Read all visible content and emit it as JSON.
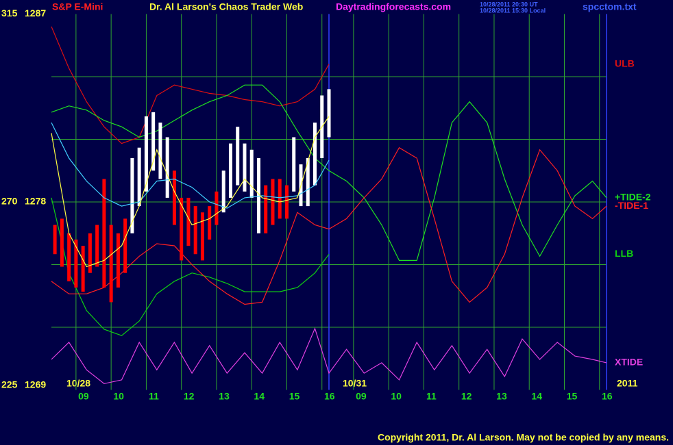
{
  "chart_data": {
    "type": "line",
    "title": "S&P E-Mini",
    "subtitle": "Dr. Al Larson's Chaos Trader Web",
    "source": "Daytradingforecasts.com",
    "timestamps": [
      "10/28/2011 20:30 UT",
      "10/28/2011 15:30 Local"
    ],
    "file": "spcctom.txt",
    "dates": [
      "10/28",
      "10/31",
      "2011"
    ],
    "copyright": "Copyright 2011, Dr. Al Larson. May not be copied by any means.",
    "xlim": [
      8.3,
      24.1
    ],
    "xticks": [
      {
        "value": 9,
        "label": "09"
      },
      10,
      11,
      12,
      13,
      14,
      15,
      16,
      {
        "value": 16.9,
        "label": "09"
      },
      {
        "value": 17.9,
        "label": "10"
      },
      {
        "value": 18.9,
        "label": "11"
      },
      {
        "value": 19.9,
        "label": "12"
      },
      {
        "value": 20.9,
        "label": "13"
      },
      {
        "value": 21.9,
        "label": "14"
      },
      {
        "value": 22.9,
        "label": "15"
      },
      {
        "value": 23.9,
        "label": "16"
      }
    ],
    "ylim": [
      1269,
      1287
    ],
    "yticks": [
      1269,
      1278,
      1287
    ],
    "y2lim": [
      225,
      315
    ],
    "y2ticks": [
      225,
      270,
      315
    ],
    "ygrid": [
      1272,
      1275,
      1278,
      1281,
      1284
    ],
    "grid": true,
    "grid_color": "#2fa52f",
    "bars": {
      "x": [
        8.4,
        8.6,
        8.8,
        9.0,
        9.2,
        9.4,
        9.6,
        9.8,
        10.0,
        10.2,
        10.4,
        10.6,
        10.8,
        11.0,
        11.2,
        11.4,
        11.6,
        11.8,
        12.0,
        12.2,
        12.4,
        12.6,
        12.8,
        13.0,
        13.2,
        13.4,
        13.6,
        13.8,
        14.0,
        14.2,
        14.4,
        14.6,
        14.8,
        15.0,
        15.2,
        15.4,
        15.6,
        15.8,
        16.0,
        16.2
      ],
      "high": [
        1276.9,
        1277.2,
        1276.5,
        1276.2,
        1275.9,
        1276.5,
        1276.9,
        1279.1,
        1276.9,
        1276.5,
        1277.2,
        1280.1,
        1280.6,
        1282.1,
        1282.3,
        1281.8,
        1281.1,
        1279.5,
        1278.2,
        1278.2,
        1277.8,
        1277.5,
        1277.8,
        1278.5,
        1279.5,
        1280.8,
        1281.6,
        1280.8,
        1280.5,
        1280.1,
        1278.8,
        1279.1,
        1279.1,
        1278.8,
        1281.1,
        1279.8,
        1280.1,
        1281.8,
        1283.1,
        1283.4
      ],
      "low": [
        1275.5,
        1274.9,
        1274.2,
        1273.9,
        1273.7,
        1274.6,
        1274.9,
        1273.9,
        1273.2,
        1273.9,
        1274.6,
        1276.5,
        1277.8,
        1278.5,
        1279.5,
        1279.1,
        1278.2,
        1276.9,
        1275.2,
        1275.9,
        1275.5,
        1275.2,
        1276.2,
        1276.9,
        1277.5,
        1278.2,
        1278.8,
        1278.5,
        1278.2,
        1276.5,
        1276.5,
        1276.9,
        1277.2,
        1277.2,
        1278.5,
        1277.8,
        1277.8,
        1278.8,
        1280.1,
        1281.1
      ],
      "colors": [
        "#ff0000",
        "#ff0000",
        "#ff0000",
        "#ff0000",
        "#ff0000",
        "#ff0000",
        "#ff0000",
        "#ff0000",
        "#ff0000",
        "#ff0000",
        "#ff0000",
        "#ffffff",
        "#ffffff",
        "#ffffff",
        "#ffffff",
        "#ffffff",
        "#ffffff",
        "#ff0000",
        "#ff0000",
        "#ff0000",
        "#ff0000",
        "#ff0000",
        "#ff0000",
        "#ff0000",
        "#ffffff",
        "#ffffff",
        "#ffffff",
        "#ffffff",
        "#ffffff",
        "#ffffff",
        "#ff0000",
        "#ff0000",
        "#ff0000",
        "#ff0000",
        "#ffffff",
        "#ffffff",
        "#ffffff",
        "#ffffff",
        "#ffffff",
        "#ffffff"
      ]
    },
    "series": [
      {
        "name": "ULB",
        "color": "#e01010",
        "x": [
          8.3,
          8.8,
          9.3,
          9.8,
          10.3,
          10.8,
          11.3,
          11.8,
          12.3,
          12.8,
          13.3,
          13.8,
          14.3,
          14.8,
          15.3,
          15.8,
          16.2
        ],
        "values": [
          1286.4,
          1284.4,
          1282.8,
          1281.6,
          1280.8,
          1281.1,
          1283.1,
          1283.6,
          1283.4,
          1283.2,
          1283.1,
          1282.9,
          1282.8,
          1282.6,
          1282.8,
          1283.4,
          1284.6
        ]
      },
      {
        "name": "LLB",
        "color": "#10d010",
        "x": [
          8.3,
          8.8,
          9.3,
          9.8,
          10.3,
          10.8,
          11.3,
          11.8,
          12.3,
          12.8,
          13.3,
          13.8,
          14.3,
          14.8,
          15.3,
          15.8,
          16.2
        ],
        "values": [
          1278.2,
          1274.6,
          1272.8,
          1271.9,
          1271.6,
          1272.3,
          1273.6,
          1274.2,
          1274.6,
          1274.4,
          1274.1,
          1273.7,
          1273.7,
          1273.7,
          1273.9,
          1274.6,
          1275.5
        ]
      },
      {
        "name": "+TIDE-2",
        "color": "#20e020",
        "x": [
          8.3,
          8.8,
          9.3,
          9.8,
          10.3,
          10.8,
          11.3,
          11.8,
          12.3,
          12.8,
          13.3,
          13.8,
          14.3,
          14.8,
          15.3,
          15.8,
          16.2,
          16.7,
          17.2,
          17.7,
          18.2,
          18.7,
          19.2,
          19.7,
          20.2,
          20.7,
          21.2,
          21.7,
          22.2,
          22.7,
          23.2,
          23.7,
          24.1
        ],
        "values": [
          1282.3,
          1282.6,
          1282.4,
          1281.9,
          1281.6,
          1281.1,
          1281.4,
          1281.9,
          1282.4,
          1282.8,
          1283.1,
          1283.6,
          1283.6,
          1282.8,
          1281.4,
          1280.1,
          1279.5,
          1279.0,
          1278.2,
          1276.9,
          1275.2,
          1275.2,
          1278.2,
          1281.8,
          1282.8,
          1281.8,
          1279.1,
          1276.9,
          1275.4,
          1276.9,
          1278.3,
          1279.0,
          1278.2
        ]
      },
      {
        "name": "-TIDE-1",
        "color": "#ff2020",
        "x": [
          8.3,
          8.8,
          9.3,
          9.8,
          10.3,
          10.8,
          11.3,
          11.8,
          12.3,
          12.8,
          13.3,
          13.8,
          14.3,
          14.8,
          15.3,
          15.8,
          16.2,
          16.7,
          17.2,
          17.7,
          18.2,
          18.7,
          19.2,
          19.7,
          20.2,
          20.7,
          21.2,
          21.7,
          22.2,
          22.7,
          23.2,
          23.7,
          24.1
        ],
        "values": [
          1274.2,
          1273.6,
          1273.6,
          1273.9,
          1274.6,
          1275.4,
          1276.0,
          1275.9,
          1275.0,
          1274.2,
          1273.6,
          1273.1,
          1273.2,
          1275.2,
          1277.5,
          1276.9,
          1276.7,
          1277.2,
          1278.2,
          1279.1,
          1280.6,
          1280.1,
          1277.2,
          1274.2,
          1273.2,
          1273.9,
          1275.5,
          1278.2,
          1280.5,
          1279.5,
          1277.8,
          1277.2,
          1277.8
        ]
      },
      {
        "color": "#40d0ff",
        "x": [
          8.3,
          8.8,
          9.3,
          9.8,
          10.3,
          10.8,
          11.3,
          11.8,
          12.3,
          12.8,
          13.3,
          13.8,
          14.3,
          14.8,
          15.3,
          15.8,
          16.2
        ],
        "values": [
          1281.8,
          1280.1,
          1279.0,
          1278.2,
          1277.8,
          1278.0,
          1279.0,
          1279.1,
          1278.7,
          1278.0,
          1277.7,
          1278.2,
          1278.3,
          1278.2,
          1278.3,
          1278.8,
          1280.0
        ]
      },
      {
        "color": "#ffff40",
        "x": [
          8.3,
          8.8,
          9.3,
          9.8,
          10.3,
          10.8,
          11.3,
          11.8,
          12.3,
          12.8,
          13.3,
          13.8,
          14.3,
          14.8,
          15.3,
          15.8,
          16.2
        ],
        "values": [
          1281.3,
          1276.5,
          1274.9,
          1275.2,
          1275.9,
          1277.8,
          1280.5,
          1278.5,
          1276.9,
          1277.2,
          1277.8,
          1279.1,
          1278.2,
          1278.0,
          1278.2,
          1281.1,
          1282.1
        ]
      },
      {
        "name": "XTIDE",
        "color": "#e040e0",
        "axis": "y2",
        "x": [
          8.3,
          8.8,
          9.3,
          9.8,
          10.3,
          10.8,
          11.3,
          11.8,
          12.3,
          12.8,
          13.3,
          13.8,
          14.3,
          14.8,
          15.3,
          15.8,
          16.2,
          16.7,
          17.2,
          17.7,
          18.2,
          18.7,
          19.2,
          19.7,
          20.2,
          20.7,
          21.2,
          21.7,
          22.2,
          22.7,
          23.2,
          23.7,
          24.1
        ],
        "values": [
          232.3,
          236.4,
          229.8,
          226.5,
          227.4,
          236.4,
          229.8,
          236.4,
          229.0,
          235.6,
          229.0,
          233.9,
          229.0,
          236.4,
          229.8,
          239.7,
          229.0,
          234.7,
          229.0,
          231.5,
          227.4,
          236.4,
          229.8,
          235.6,
          229.0,
          234.7,
          228.2,
          237.2,
          232.3,
          236.4,
          233.1,
          232.3,
          231.5
        ]
      }
    ]
  }
}
